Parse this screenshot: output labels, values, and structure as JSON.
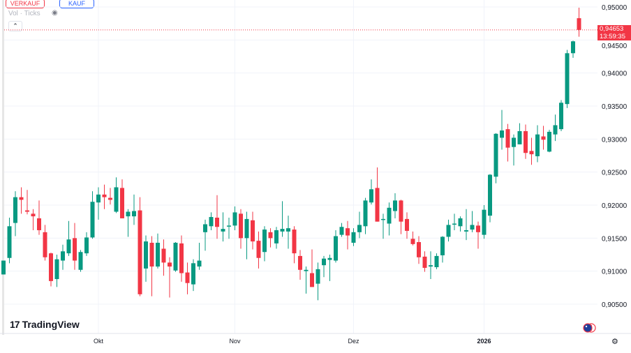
{
  "toolbar": {
    "sell_label": "VERKAUF",
    "buy_label": "KAUF",
    "volume_label": "Vol · Ticks",
    "collapse_icon": "chevron-up-icon",
    "visibility_icon": "eye-crossed-icon"
  },
  "branding": {
    "logo_text": "TradingView",
    "logo_mark": "17"
  },
  "last_price": {
    "value": "0,94653",
    "countdown": "13:59:35",
    "color": "#f23645"
  },
  "colors": {
    "up": "#089981",
    "down": "#f23645",
    "grid": "#f0f3fa"
  },
  "icons": {
    "flags": "currency-pair-flags-icon",
    "settings": "settings-icon"
  },
  "chart_data": {
    "type": "candlestick",
    "ylim": [
      0.9035,
      0.951
    ],
    "y_ticks": [
      {
        "value": 0.95,
        "label": "0,95000"
      },
      {
        "value": 0.945,
        "label": "0,94500"
      },
      {
        "value": 0.94,
        "label": "0,94000"
      },
      {
        "value": 0.935,
        "label": "0,93500"
      },
      {
        "value": 0.93,
        "label": "0,93000"
      },
      {
        "value": 0.925,
        "label": "0,92500"
      },
      {
        "value": 0.92,
        "label": "0,92000"
      },
      {
        "value": 0.915,
        "label": "0,91500"
      },
      {
        "value": 0.91,
        "label": "0,91000"
      },
      {
        "value": 0.905,
        "label": "0,90500"
      }
    ],
    "x_ticks": [
      {
        "index": 16,
        "label": "Okt",
        "bold": false
      },
      {
        "index": 39,
        "label": "Nov",
        "bold": false
      },
      {
        "index": 59,
        "label": "Dez",
        "bold": false
      },
      {
        "index": 81,
        "label": "2026",
        "bold": true
      }
    ],
    "grid": true,
    "ohlc": [
      [
        0.9095,
        0.9116,
        0.9095,
        0.9116
      ],
      [
        0.912,
        0.9181,
        0.9112,
        0.9168
      ],
      [
        0.9173,
        0.9221,
        0.9153,
        0.9212
      ],
      [
        0.9212,
        0.9227,
        0.9187,
        0.9208
      ],
      [
        0.9192,
        0.9223,
        0.9186,
        0.919
      ],
      [
        0.9187,
        0.9194,
        0.9162,
        0.9183
      ],
      [
        0.918,
        0.9207,
        0.9155,
        0.9162
      ],
      [
        0.9159,
        0.917,
        0.9116,
        0.9121
      ],
      [
        0.9127,
        0.9128,
        0.9077,
        0.9085
      ],
      [
        0.9088,
        0.9125,
        0.9076,
        0.9118
      ],
      [
        0.9116,
        0.914,
        0.9102,
        0.913
      ],
      [
        0.9127,
        0.9176,
        0.9123,
        0.9148
      ],
      [
        0.915,
        0.9173,
        0.9102,
        0.9116
      ],
      [
        0.9102,
        0.9132,
        0.9099,
        0.9129
      ],
      [
        0.9127,
        0.9159,
        0.9123,
        0.9151
      ],
      [
        0.9151,
        0.9221,
        0.9149,
        0.9205
      ],
      [
        0.9204,
        0.9227,
        0.9178,
        0.9216
      ],
      [
        0.9216,
        0.9231,
        0.9194,
        0.9212
      ],
      [
        0.9211,
        0.9226,
        0.9201,
        0.9208
      ],
      [
        0.919,
        0.9242,
        0.9188,
        0.9227
      ],
      [
        0.9226,
        0.9239,
        0.918,
        0.918
      ],
      [
        0.9183,
        0.9194,
        0.9152,
        0.919
      ],
      [
        0.9183,
        0.9216,
        0.917,
        0.9191
      ],
      [
        0.9192,
        0.9212,
        0.9062,
        0.9065
      ],
      [
        0.9104,
        0.9154,
        0.9084,
        0.9145
      ],
      [
        0.9143,
        0.9153,
        0.9062,
        0.9107
      ],
      [
        0.9107,
        0.9157,
        0.9104,
        0.9143
      ],
      [
        0.9134,
        0.9148,
        0.9093,
        0.9113
      ],
      [
        0.9113,
        0.9121,
        0.906,
        0.9107
      ],
      [
        0.9101,
        0.9144,
        0.9099,
        0.9143
      ],
      [
        0.9142,
        0.9154,
        0.9084,
        0.9097
      ],
      [
        0.9098,
        0.9113,
        0.9065,
        0.9082
      ],
      [
        0.908,
        0.9118,
        0.907,
        0.9112
      ],
      [
        0.9107,
        0.9143,
        0.9102,
        0.9116
      ],
      [
        0.9159,
        0.9178,
        0.9131,
        0.9171
      ],
      [
        0.9168,
        0.9189,
        0.9162,
        0.9182
      ],
      [
        0.9181,
        0.9215,
        0.9149,
        0.9167
      ],
      [
        0.916,
        0.9189,
        0.9145,
        0.9164
      ],
      [
        0.9168,
        0.9181,
        0.9149,
        0.9169
      ],
      [
        0.9169,
        0.9198,
        0.9162,
        0.9189
      ],
      [
        0.9187,
        0.9194,
        0.9134,
        0.915
      ],
      [
        0.915,
        0.919,
        0.9118,
        0.9179
      ],
      [
        0.9177,
        0.919,
        0.9133,
        0.9145
      ],
      [
        0.9146,
        0.916,
        0.9104,
        0.912
      ],
      [
        0.9129,
        0.9168,
        0.9115,
        0.9163
      ],
      [
        0.9159,
        0.9165,
        0.9136,
        0.915
      ],
      [
        0.9142,
        0.9167,
        0.9134,
        0.9162
      ],
      [
        0.916,
        0.9206,
        0.9152,
        0.9164
      ],
      [
        0.916,
        0.9184,
        0.9134,
        0.9165
      ],
      [
        0.9163,
        0.9168,
        0.9112,
        0.9127
      ],
      [
        0.9123,
        0.9132,
        0.9087,
        0.9102
      ],
      [
        0.91,
        0.9107,
        0.9066,
        0.9102
      ],
      [
        0.9097,
        0.9133,
        0.9076,
        0.9076
      ],
      [
        0.9081,
        0.9113,
        0.9056,
        0.9103
      ],
      [
        0.9109,
        0.9123,
        0.9091,
        0.9119
      ],
      [
        0.9117,
        0.9125,
        0.9085,
        0.912
      ],
      [
        0.9116,
        0.9162,
        0.9113,
        0.9153
      ],
      [
        0.9155,
        0.9173,
        0.9152,
        0.9167
      ],
      [
        0.9165,
        0.9176,
        0.9133,
        0.9154
      ],
      [
        0.9143,
        0.9165,
        0.9138,
        0.9159
      ],
      [
        0.9159,
        0.919,
        0.915,
        0.917
      ],
      [
        0.9168,
        0.9211,
        0.9156,
        0.9207
      ],
      [
        0.9204,
        0.9239,
        0.9201,
        0.9224
      ],
      [
        0.9226,
        0.9257,
        0.9175,
        0.9175
      ],
      [
        0.9178,
        0.9187,
        0.9149,
        0.9179
      ],
      [
        0.9172,
        0.9204,
        0.9154,
        0.9196
      ],
      [
        0.9191,
        0.9218,
        0.918,
        0.9207
      ],
      [
        0.9207,
        0.9208,
        0.9156,
        0.9175
      ],
      [
        0.9179,
        0.9189,
        0.9149,
        0.9161
      ],
      [
        0.9149,
        0.916,
        0.9139,
        0.9141
      ],
      [
        0.9144,
        0.9153,
        0.9111,
        0.9121
      ],
      [
        0.9122,
        0.913,
        0.9099,
        0.9105
      ],
      [
        0.9107,
        0.913,
        0.9088,
        0.9109
      ],
      [
        0.9106,
        0.9127,
        0.9103,
        0.9123
      ],
      [
        0.9124,
        0.9153,
        0.9113,
        0.9152
      ],
      [
        0.9152,
        0.9178,
        0.9145,
        0.917
      ],
      [
        0.9171,
        0.9187,
        0.9162,
        0.9172
      ],
      [
        0.9168,
        0.9183,
        0.916,
        0.918
      ],
      [
        0.916,
        0.9194,
        0.9147,
        0.9162
      ],
      [
        0.9163,
        0.9191,
        0.9159,
        0.917
      ],
      [
        0.9169,
        0.9175,
        0.9134,
        0.9159
      ],
      [
        0.9155,
        0.92,
        0.9149,
        0.9193
      ],
      [
        0.9184,
        0.9247,
        0.9174,
        0.9246
      ],
      [
        0.9243,
        0.9309,
        0.9233,
        0.9308
      ],
      [
        0.9302,
        0.9344,
        0.9284,
        0.9313
      ],
      [
        0.9315,
        0.9323,
        0.9266,
        0.9287
      ],
      [
        0.9288,
        0.9307,
        0.926,
        0.9302
      ],
      [
        0.9292,
        0.9324,
        0.9292,
        0.9312
      ],
      [
        0.9312,
        0.9322,
        0.927,
        0.9279
      ],
      [
        0.9282,
        0.9302,
        0.9261,
        0.9277
      ],
      [
        0.9274,
        0.9321,
        0.9265,
        0.9307
      ],
      [
        0.9304,
        0.932,
        0.9284,
        0.9299
      ],
      [
        0.9281,
        0.9314,
        0.928,
        0.9311
      ],
      [
        0.9307,
        0.9337,
        0.9297,
        0.9321
      ],
      [
        0.9315,
        0.9359,
        0.9312,
        0.9355
      ],
      [
        0.9353,
        0.9435,
        0.9347,
        0.943
      ],
      [
        0.943,
        0.9449,
        0.9423,
        0.9448
      ],
      [
        0.9483,
        0.9499,
        0.9455,
        0.94653
      ]
    ]
  }
}
